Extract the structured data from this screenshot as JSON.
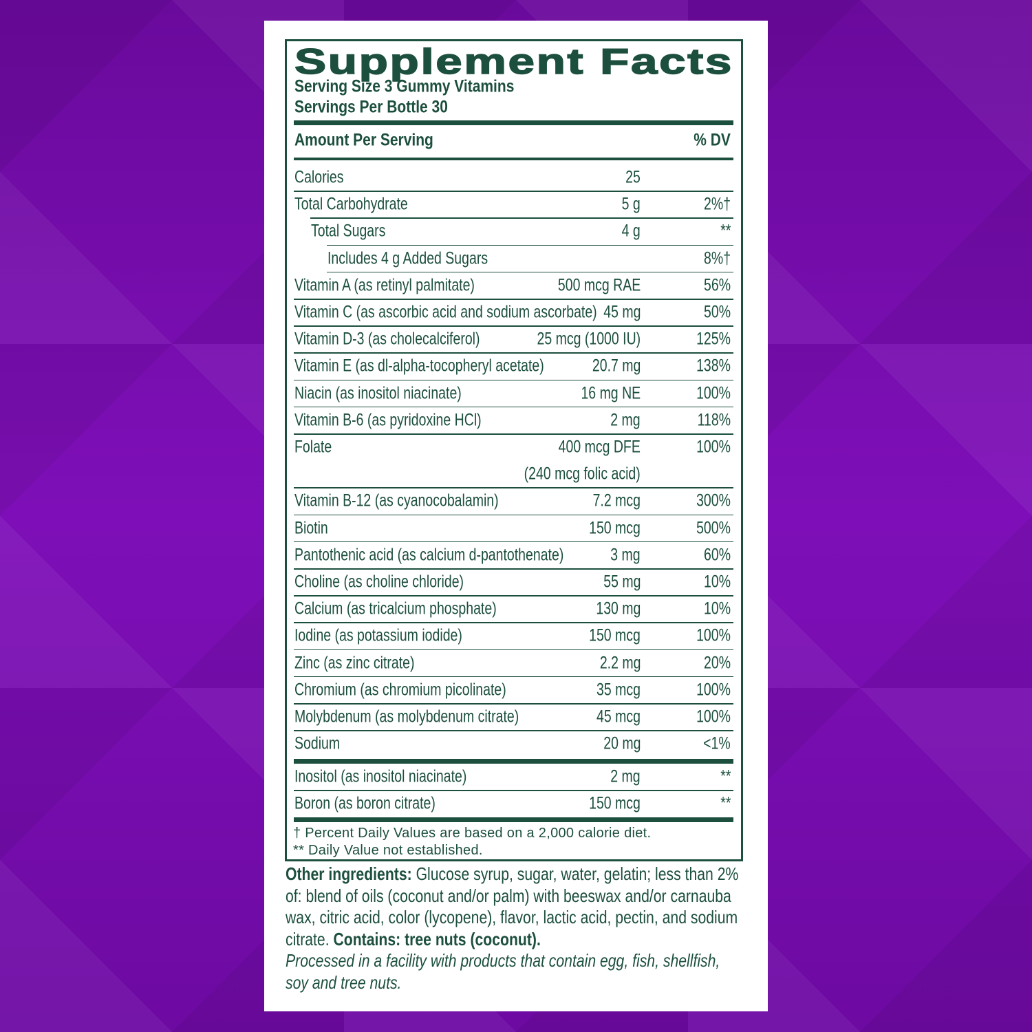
{
  "title": "Supplement Facts",
  "serving_size": "Serving Size 3 Gummy Vitamins",
  "servings_per_container": "Servings Per Bottle 30",
  "header": {
    "amount": "Amount Per Serving",
    "dv": "% DV"
  },
  "rows": [
    {
      "name": "Calories",
      "amount": "25"
    },
    {
      "name": "Total Carbohydrate",
      "amount": "5 g",
      "dv": "2%†"
    },
    {
      "name": "Total Sugars",
      "amount": "4 g",
      "dv": "**"
    },
    {
      "name": "Includes 4 g Added Sugars",
      "dv": "8%†"
    },
    {
      "name": "Vitamin A (as retinyl palmitate)",
      "amount": "500 mcg RAE",
      "dv": "56%"
    },
    {
      "name": "Vitamin C (as ascorbic acid and sodium ascorbate)",
      "amount": "45 mg",
      "dv": "50%"
    },
    {
      "name": "Vitamin D-3 (as cholecalciferol)",
      "amount": "25 mcg (1000 IU)",
      "dv": "125%"
    },
    {
      "name": "Vitamin E (as dl-alpha-tocopheryl acetate)",
      "amount": "20.7 mg",
      "dv": "138%"
    },
    {
      "name": "Niacin (as inositol niacinate)",
      "amount": "16 mg NE",
      "dv": "100%"
    },
    {
      "name": "Vitamin B-6 (as pyridoxine HCl)",
      "amount": "2 mg",
      "dv": "118%"
    },
    {
      "name": "Folate",
      "amount": "400 mcg DFE",
      "amount_note": "(240 mcg folic acid)",
      "dv": "100%"
    },
    {
      "name": "Vitamin B-12 (as cyanocobalamin)",
      "amount": "7.2 mcg",
      "dv": "300%"
    },
    {
      "name": "Biotin",
      "amount": "150 mcg",
      "dv": "500%"
    },
    {
      "name": "Pantothenic acid (as calcium d-pantothenate)",
      "amount": "3 mg",
      "dv": "60%"
    },
    {
      "name": "Choline (as choline chloride)",
      "amount": "55 mg",
      "dv": "10%"
    },
    {
      "name": "Calcium (as tricalcium phosphate)",
      "amount": "130 mg",
      "dv": "10%"
    },
    {
      "name": "Iodine (as potassium iodide)",
      "amount": "150 mcg",
      "dv": "100%"
    },
    {
      "name": "Zinc (as zinc citrate)",
      "amount": "2.2 mg",
      "dv": "20%"
    },
    {
      "name": "Chromium (as chromium picolinate)",
      "amount": "35 mcg",
      "dv": "100%"
    },
    {
      "name": "Molybdenum (as molybdenum citrate)",
      "amount": "45 mcg",
      "dv": "100%"
    },
    {
      "name": "Sodium",
      "amount": "20 mg",
      "dv": "<1%"
    }
  ],
  "other_rows": [
    {
      "name": "Inositol (as inositol niacinate)",
      "amount": "2 mg",
      "dv": "**"
    },
    {
      "name": "Boron (as boron citrate)",
      "amount": "150 mcg",
      "dv": "**"
    }
  ],
  "footnotes": [
    "† Percent Daily Values are based on a 2,000 calorie diet.",
    "** Daily Value not established."
  ],
  "ingredients": {
    "label": "Other ingredients:",
    "text": "Glucose syrup, sugar, water, gelatin; less than 2% of: blend of oils (coconut and/or palm) with beeswax and/or carnauba wax, citric acid, color (lycopene), flavor, lactic acid, pectin, and sodium citrate.",
    "contains": "Contains: tree nuts (coconut).",
    "facility": "Processed in a facility with products that contain egg, fish, shellfish, soy and tree nuts."
  }
}
